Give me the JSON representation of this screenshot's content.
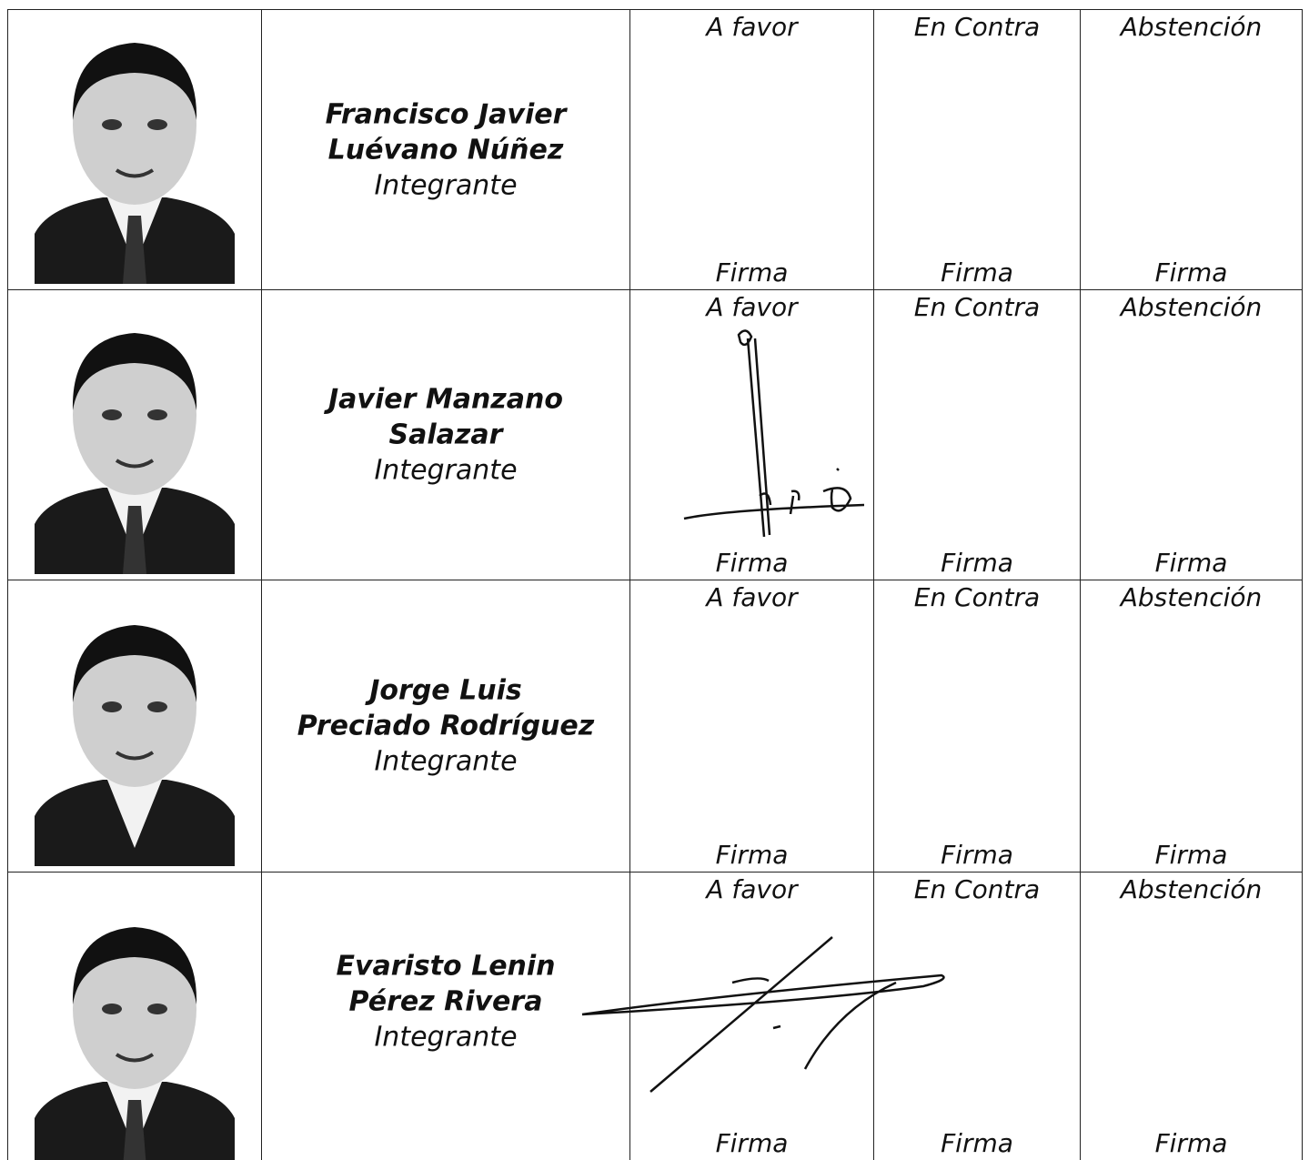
{
  "table": {
    "rows": [
      {
        "name": [
          "Francisco Javier",
          "Luévano Núñez"
        ],
        "role": "Integrante",
        "votes": [
          {
            "label": "A favor",
            "footer": "Firma"
          },
          {
            "label": "En Contra",
            "footer": "Firma"
          },
          {
            "label": "Abstención",
            "footer": "Firma"
          }
        ]
      },
      {
        "name": [
          "Javier Manzano",
          "Salazar"
        ],
        "role": "Integrante",
        "votes": [
          {
            "label": "A favor",
            "footer": "Firma"
          },
          {
            "label": "En Contra",
            "footer": "Firma"
          },
          {
            "label": "Abstención",
            "footer": "Firma"
          }
        ]
      },
      {
        "name": [
          "Jorge Luis",
          "Preciado Rodríguez"
        ],
        "role": "Integrante",
        "votes": [
          {
            "label": "A favor",
            "footer": "Firma"
          },
          {
            "label": "En Contra",
            "footer": "Firma"
          },
          {
            "label": "Abstención",
            "footer": "Firma"
          }
        ]
      },
      {
        "name": [
          "Evaristo Lenin",
          "Pérez Rivera"
        ],
        "role": "Integrante",
        "votes": [
          {
            "label": "A favor",
            "footer": "Firma"
          },
          {
            "label": "En Contra",
            "footer": "Firma"
          },
          {
            "label": "Abstención",
            "footer": "Firma"
          }
        ]
      }
    ]
  }
}
